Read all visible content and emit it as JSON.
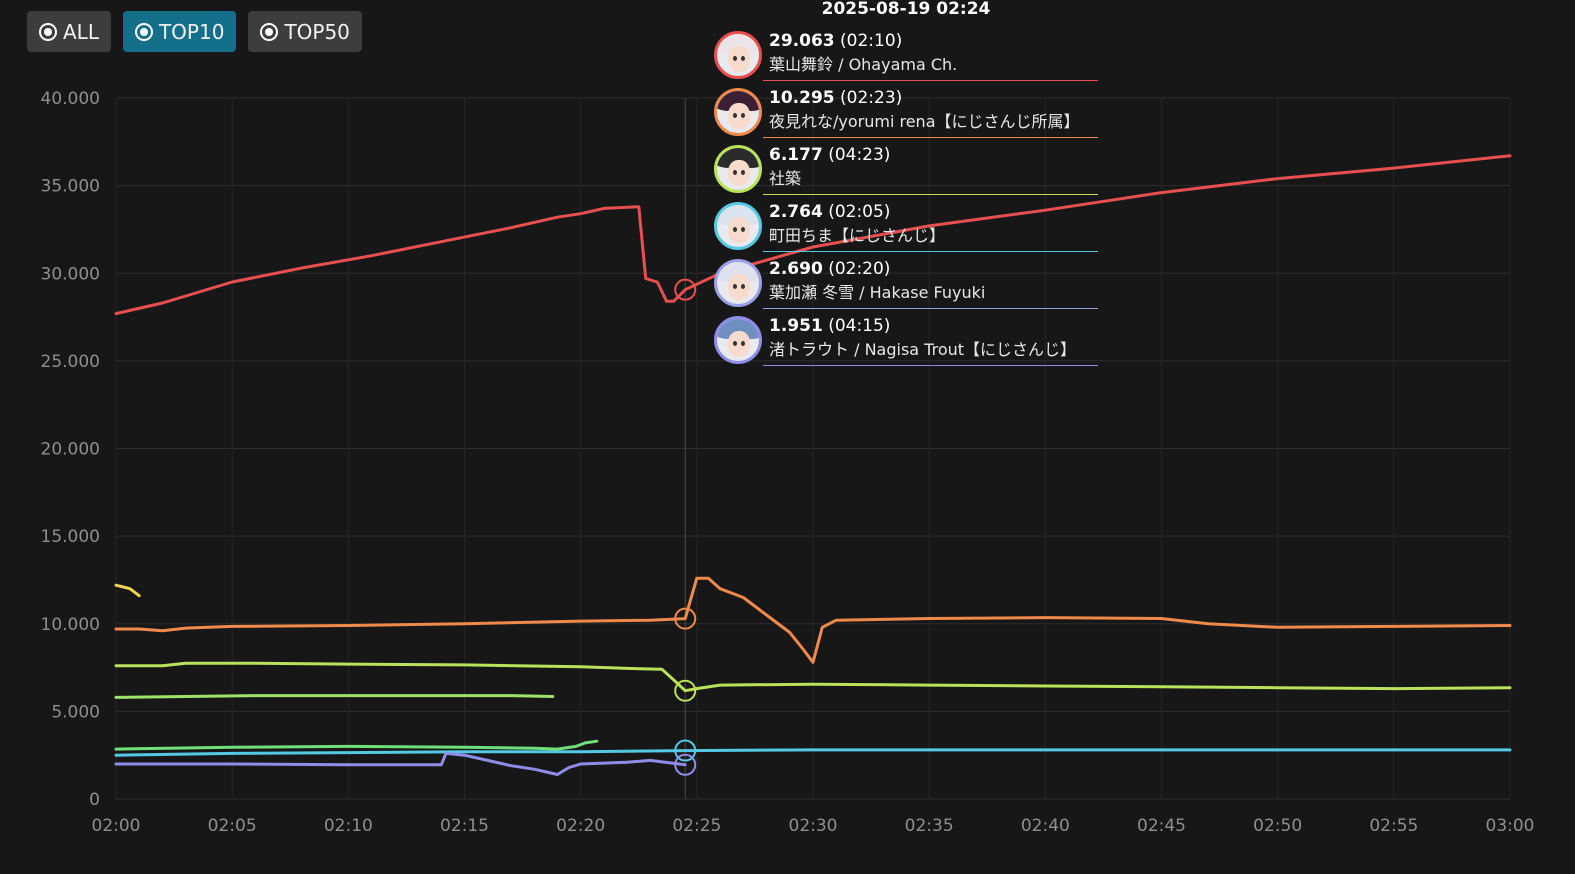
{
  "filters": [
    {
      "label": "ALL",
      "active": false
    },
    {
      "label": "TOP10",
      "active": true
    },
    {
      "label": "TOP50",
      "active": false
    }
  ],
  "tooltip": {
    "time": "2025-08-19 02:24",
    "rows": [
      {
        "value": "29.063",
        "peak_time": "(02:10)",
        "name": "葉山舞鈴 / Ohayama Ch.",
        "color": "#e8504f",
        "hair": "#ece4e8"
      },
      {
        "value": "10.295",
        "peak_time": "(02:23)",
        "name": "夜見れな/yorumi rena【にじさんじ所属】",
        "color": "#ef8a4a",
        "hair": "#3a1f35"
      },
      {
        "value": "6.177",
        "peak_time": "(04:23)",
        "name": "社築",
        "color": "#b8e35a",
        "hair": "#2b2b2b"
      },
      {
        "value": "2.764",
        "peak_time": "(02:05)",
        "name": "町田ちま【にじさんじ】",
        "color": "#53c9e3",
        "hair": "#dbe3ee"
      },
      {
        "value": "2.690",
        "peak_time": "(02:20)",
        "name": "葉加瀬 冬雪 / Hakase Fuyuki",
        "color": "#9aa0e6",
        "hair": "#dfe1ee"
      },
      {
        "value": "1.951",
        "peak_time": "(04:15)",
        "name": "渚トラウト / Nagisa Trout【にじさんじ】",
        "color": "#8f8de8",
        "hair": "#6e8fbf"
      }
    ]
  },
  "chart_data": {
    "type": "line",
    "x_ticks": [
      "02:00",
      "02:05",
      "02:10",
      "02:15",
      "02:20",
      "02:25",
      "02:30",
      "02:35",
      "02:40",
      "02:45",
      "02:50",
      "02:55",
      "03:00"
    ],
    "y_ticks": [
      "0",
      "5.000",
      "10.000",
      "15.000",
      "20.000",
      "25.000",
      "30.000",
      "35.000",
      "40.000"
    ],
    "xlim": [
      "02:00",
      "03:00"
    ],
    "ylim": [
      0,
      40000
    ],
    "grid": true,
    "crosshair_x": "02:24.5",
    "series": [
      {
        "color": "#e8504f",
        "points": [
          [
            "02:00",
            27700
          ],
          [
            "02:02",
            28300
          ],
          [
            "02:05",
            29500
          ],
          [
            "02:08",
            30300
          ],
          [
            "02:11",
            31000
          ],
          [
            "02:14",
            31800
          ],
          [
            "02:17",
            32600
          ],
          [
            "02:19",
            33200
          ],
          [
            "02:20",
            33400
          ],
          [
            "02:21",
            33700
          ],
          [
            "02:22.5",
            33800
          ],
          [
            "02:22.8",
            29700
          ],
          [
            "02:23.3",
            29500
          ],
          [
            "02:23.7",
            28400
          ],
          [
            "02:24",
            28400
          ],
          [
            "02:24.5",
            29063
          ],
          [
            "02:26",
            30000
          ],
          [
            "02:30",
            31500
          ],
          [
            "02:35",
            32700
          ],
          [
            "02:40",
            33600
          ],
          [
            "02:45",
            34600
          ],
          [
            "02:50",
            35400
          ],
          [
            "02:55",
            36000
          ],
          [
            "03:00",
            36700
          ]
        ]
      },
      {
        "color": "#ef8a4a",
        "points": [
          [
            "02:00",
            9700
          ],
          [
            "02:01",
            9700
          ],
          [
            "02:02",
            9600
          ],
          [
            "02:03",
            9750
          ],
          [
            "02:05",
            9850
          ],
          [
            "02:10",
            9900
          ],
          [
            "02:15",
            10000
          ],
          [
            "02:20",
            10150
          ],
          [
            "02:23",
            10200
          ],
          [
            "02:24.5",
            10295
          ],
          [
            "02:25",
            12600
          ],
          [
            "02:25.5",
            12600
          ],
          [
            "02:26",
            12000
          ],
          [
            "02:27",
            11500
          ],
          [
            "02:28",
            10500
          ],
          [
            "02:29",
            9500
          ],
          [
            "02:29.6",
            8500
          ],
          [
            "02:30",
            7800
          ],
          [
            "02:30.4",
            9800
          ],
          [
            "02:31",
            10200
          ],
          [
            "02:35",
            10300
          ],
          [
            "02:40",
            10350
          ],
          [
            "02:45",
            10300
          ],
          [
            "02:47",
            10000
          ],
          [
            "02:50",
            9800
          ],
          [
            "02:55",
            9850
          ],
          [
            "03:00",
            9900
          ]
        ]
      },
      {
        "color": "#b8e35a",
        "points": [
          [
            "02:00",
            7600
          ],
          [
            "02:02",
            7600
          ],
          [
            "02:03",
            7750
          ],
          [
            "02:06",
            7750
          ],
          [
            "02:10",
            7700
          ],
          [
            "02:15",
            7650
          ],
          [
            "02:20",
            7550
          ],
          [
            "02:22",
            7450
          ],
          [
            "02:23.5",
            7400
          ],
          [
            "02:24",
            6800
          ],
          [
            "02:24.5",
            6177
          ],
          [
            "02:25",
            6300
          ],
          [
            "02:26",
            6500
          ],
          [
            "02:30",
            6550
          ],
          [
            "02:35",
            6500
          ],
          [
            "02:40",
            6450
          ],
          [
            "02:45",
            6400
          ],
          [
            "02:50",
            6350
          ],
          [
            "02:55",
            6300
          ],
          [
            "03:00",
            6350
          ]
        ]
      },
      {
        "color": "#53c9e3",
        "points": [
          [
            "02:00",
            2500
          ],
          [
            "02:05",
            2600
          ],
          [
            "02:10",
            2650
          ],
          [
            "02:15",
            2700
          ],
          [
            "02:20",
            2700
          ],
          [
            "02:24.5",
            2764
          ],
          [
            "02:30",
            2800
          ],
          [
            "02:35",
            2800
          ],
          [
            "02:40",
            2800
          ],
          [
            "02:45",
            2800
          ],
          [
            "02:50",
            2800
          ],
          [
            "02:55",
            2800
          ],
          [
            "03:00",
            2800
          ]
        ]
      },
      {
        "color": "#8f8de8",
        "points": [
          [
            "02:00",
            2000
          ],
          [
            "02:05",
            2000
          ],
          [
            "02:10",
            1950
          ],
          [
            "02:14",
            1950
          ],
          [
            "02:14.2",
            2600
          ],
          [
            "02:15",
            2500
          ],
          [
            "02:16",
            2200
          ],
          [
            "02:17",
            1900
          ],
          [
            "02:18",
            1700
          ],
          [
            "02:19",
            1400
          ],
          [
            "02:19.5",
            1800
          ],
          [
            "02:20",
            2000
          ],
          [
            "02:22",
            2100
          ],
          [
            "02:23",
            2200
          ],
          [
            "02:24.5",
            1951
          ]
        ]
      },
      {
        "color": "#6fe07a",
        "points": [
          [
            "02:00",
            2850
          ],
          [
            "02:05",
            2950
          ],
          [
            "02:10",
            3000
          ],
          [
            "02:15",
            2950
          ],
          [
            "02:18",
            2900
          ],
          [
            "02:19",
            2850
          ],
          [
            "02:19.8",
            3000
          ],
          [
            "02:20.2",
            3200
          ],
          [
            "02:20.7",
            3300
          ]
        ]
      },
      {
        "color": "#9ce36a",
        "points": [
          [
            "02:00",
            5800
          ],
          [
            "02:03",
            5850
          ],
          [
            "02:06",
            5900
          ],
          [
            "02:10",
            5900
          ],
          [
            "02:14",
            5900
          ],
          [
            "02:17",
            5900
          ],
          [
            "02:18.8",
            5850
          ]
        ]
      },
      {
        "color": "#f0d34f",
        "points": [
          [
            "02:00",
            12200
          ],
          [
            "02:00.6",
            12000
          ],
          [
            "02:01",
            11600
          ]
        ]
      }
    ],
    "markers": [
      {
        "x": "02:24.5",
        "y": 29063,
        "color": "#e8504f"
      },
      {
        "x": "02:24.5",
        "y": 10295,
        "color": "#ef8a4a"
      },
      {
        "x": "02:24.5",
        "y": 6177,
        "color": "#b8e35a"
      },
      {
        "x": "02:24.5",
        "y": 2764,
        "color": "#53c9e3"
      },
      {
        "x": "02:24.5",
        "y": 1951,
        "color": "#8f8de8"
      }
    ]
  }
}
